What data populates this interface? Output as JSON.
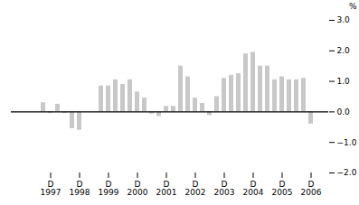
{
  "chart_data": {
    "type": "bar",
    "ylabel": "%",
    "categories": [
      null,
      null,
      null,
      "D\n1997",
      null,
      null,
      null,
      "D\n1998",
      null,
      null,
      null,
      "D\n1999",
      null,
      null,
      null,
      "D\n2000",
      null,
      null,
      null,
      "D\n2001",
      null,
      null,
      null,
      "D\n2002",
      null,
      null,
      null,
      "D\n2003",
      null,
      null,
      null,
      "D\n2004",
      null,
      null,
      null,
      "D\n2005",
      null,
      null,
      null,
      "D\n2006"
    ],
    "values": [
      0.0,
      0.0,
      0.3,
      -0.05,
      0.25,
      -0.05,
      -0.55,
      -0.6,
      0.0,
      0.0,
      0.85,
      0.85,
      1.05,
      0.9,
      1.05,
      0.65,
      0.45,
      -0.07,
      -0.15,
      0.18,
      0.18,
      1.5,
      1.15,
      0.45,
      0.28,
      -0.12,
      0.5,
      1.1,
      1.2,
      1.25,
      1.9,
      1.95,
      1.5,
      1.5,
      1.05,
      1.15,
      1.05,
      1.05,
      1.1,
      -0.4
    ],
    "color": "#c8c8c8",
    "ylim": [
      -2,
      3
    ],
    "yticks": [
      -2,
      -1,
      0,
      1,
      2,
      3
    ],
    "grid": false
  }
}
